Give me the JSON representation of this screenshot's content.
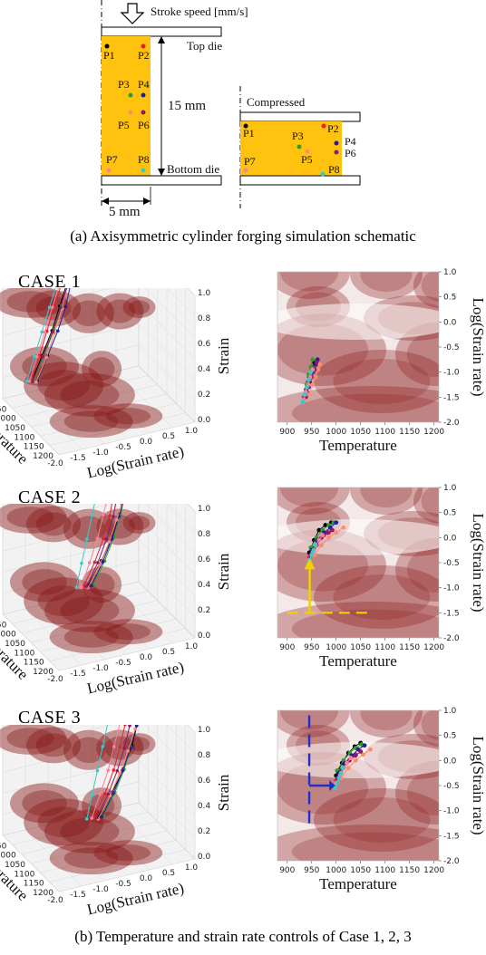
{
  "schematic": {
    "stroke_label": "Stroke speed [mm/s]",
    "top_die": "Top die",
    "bottom_die": "Bottom die",
    "height_label": "15 mm",
    "width_label": "5 mm",
    "compressed_label": "Compressed",
    "points": [
      "P1",
      "P2",
      "P3",
      "P4",
      "P5",
      "P6",
      "P7",
      "P8"
    ],
    "point_colors": [
      "#000000",
      "#e8202a",
      "#2ca02c",
      "#1f1f9f",
      "#ff8c69",
      "#8b1a6b",
      "#ff7f9a",
      "#3ec9c9"
    ],
    "workpiece_color": "#ffc20e"
  },
  "caption_a": "(a) Axisymmetric cylinder forging simulation schematic",
  "caption_b": "(b) Temperature and strain rate controls of Case 1, 2, 3",
  "cases": [
    {
      "title": "CASE 1"
    },
    {
      "title": "CASE 2"
    },
    {
      "title": "CASE 3"
    }
  ],
  "axes_3d": {
    "temperature_label": "Temperature",
    "strain_rate_label": "Log(Strain rate)",
    "strain_label": "Strain",
    "temperature_ticks": [
      "900",
      "950",
      "1000",
      "1050",
      "1100",
      "1150",
      "1200"
    ],
    "strain_rate_ticks": [
      "-2.0",
      "-1.5",
      "-1.0",
      "-0.5",
      "0.0",
      "0.5",
      "1.0"
    ],
    "strain_ticks": [
      "0.0",
      "0.2",
      "0.4",
      "0.6",
      "0.8",
      "1.0"
    ]
  },
  "axes_2d": {
    "xlabel": "Temperature",
    "ylabel": "Log(Strain rate)",
    "x_ticks": [
      "900",
      "950",
      "1000",
      "1050",
      "1100",
      "1150",
      "1200"
    ],
    "y_ticks": [
      "1.0",
      "0.5",
      "0.0",
      "-0.5",
      "-1.0",
      "-1.5",
      "-2.0"
    ]
  },
  "chart_data": [
    {
      "type": "scatter",
      "title": "CASE 1",
      "xlabel": "Temperature",
      "ylabel": "Log(Strain rate)",
      "xlim": [
        880,
        1210
      ],
      "ylim": [
        -2.0,
        1.0
      ],
      "series": [
        {
          "name": "P1",
          "color": "#000000",
          "x": [
            935,
            940,
            945,
            950,
            955
          ],
          "y": [
            -1.5,
            -1.3,
            -1.1,
            -0.95,
            -0.8
          ]
        },
        {
          "name": "P2",
          "color": "#e8202a",
          "x": [
            934,
            938,
            942,
            946,
            950
          ],
          "y": [
            -1.5,
            -1.35,
            -1.2,
            -1.05,
            -0.9
          ]
        },
        {
          "name": "P3",
          "color": "#2ca02c",
          "x": [
            936,
            940,
            944,
            948,
            952
          ],
          "y": [
            -1.45,
            -1.25,
            -1.05,
            -0.9,
            -0.75
          ]
        },
        {
          "name": "P4",
          "color": "#1f1f9f",
          "x": [
            940,
            946,
            952,
            958,
            962
          ],
          "y": [
            -1.4,
            -1.2,
            -1.0,
            -0.85,
            -0.75
          ]
        },
        {
          "name": "P5",
          "color": "#ff8c69",
          "x": [
            945,
            952,
            958,
            963,
            967
          ],
          "y": [
            -1.45,
            -1.25,
            -1.1,
            -0.95,
            -0.85
          ]
        },
        {
          "name": "P6",
          "color": "#8b1a6b",
          "x": [
            938,
            944,
            950,
            956,
            960
          ],
          "y": [
            -1.5,
            -1.3,
            -1.1,
            -0.95,
            -0.8
          ]
        },
        {
          "name": "P7",
          "color": "#ff7f9a",
          "x": [
            934,
            938,
            943,
            947,
            952
          ],
          "y": [
            -1.55,
            -1.4,
            -1.25,
            -1.1,
            -0.95
          ]
        },
        {
          "name": "P8",
          "color": "#3ec9c9",
          "x": [
            932,
            936,
            940,
            944,
            948
          ],
          "y": [
            -1.6,
            -1.45,
            -1.3,
            -1.15,
            -1.0
          ]
        }
      ]
    },
    {
      "type": "scatter",
      "title": "CASE 2",
      "xlabel": "Temperature",
      "ylabel": "Log(Strain rate)",
      "xlim": [
        880,
        1210
      ],
      "ylim": [
        -2.0,
        1.0
      ],
      "series": [
        {
          "name": "P1",
          "color": "#000000",
          "x": [
            945,
            955,
            965,
            978,
            990
          ],
          "y": [
            -0.3,
            -0.05,
            0.15,
            0.25,
            0.3
          ]
        },
        {
          "name": "P2",
          "color": "#e8202a",
          "x": [
            945,
            955,
            965,
            975,
            985
          ],
          "y": [
            -0.4,
            -0.2,
            -0.05,
            0.05,
            0.1
          ]
        },
        {
          "name": "P3",
          "color": "#2ca02c",
          "x": [
            948,
            960,
            972,
            985,
            995
          ],
          "y": [
            -0.2,
            0.0,
            0.15,
            0.25,
            0.3
          ]
        },
        {
          "name": "P4",
          "color": "#1f1f9f",
          "x": [
            950,
            962,
            975,
            988,
            1000
          ],
          "y": [
            -0.25,
            -0.05,
            0.1,
            0.2,
            0.3
          ]
        },
        {
          "name": "P5",
          "color": "#ff8c69",
          "x": [
            955,
            970,
            985,
            1000,
            1015
          ],
          "y": [
            -0.35,
            -0.15,
            0.0,
            0.1,
            0.2
          ]
        },
        {
          "name": "P6",
          "color": "#8b1a6b",
          "x": [
            948,
            960,
            970,
            982,
            992
          ],
          "y": [
            -0.35,
            -0.15,
            0.0,
            0.1,
            0.15
          ]
        },
        {
          "name": "P7",
          "color": "#ff7f9a",
          "x": [
            945,
            952,
            958,
            965,
            972
          ],
          "y": [
            -0.45,
            -0.3,
            -0.15,
            -0.05,
            0.05
          ]
        },
        {
          "name": "P8",
          "color": "#3ec9c9",
          "x": [
            942,
            946,
            950,
            954,
            958
          ],
          "y": [
            -0.55,
            -0.45,
            -0.35,
            -0.25,
            -0.15
          ]
        }
      ]
    },
    {
      "type": "scatter",
      "title": "CASE 3",
      "xlabel": "Temperature",
      "ylabel": "Log(Strain rate)",
      "xlim": [
        880,
        1210
      ],
      "ylim": [
        -2.0,
        1.0
      ],
      "series": [
        {
          "name": "P1",
          "color": "#000000",
          "x": [
            1000,
            1012,
            1025,
            1038,
            1050
          ],
          "y": [
            -0.3,
            -0.05,
            0.15,
            0.28,
            0.35
          ]
        },
        {
          "name": "P2",
          "color": "#e8202a",
          "x": [
            1000,
            1010,
            1020,
            1030,
            1040
          ],
          "y": [
            -0.4,
            -0.2,
            -0.05,
            0.05,
            0.12
          ]
        },
        {
          "name": "P3",
          "color": "#2ca02c",
          "x": [
            1002,
            1015,
            1028,
            1040,
            1052
          ],
          "y": [
            -0.2,
            0.0,
            0.15,
            0.25,
            0.32
          ]
        },
        {
          "name": "P4",
          "color": "#1f1f9f",
          "x": [
            1005,
            1018,
            1032,
            1045,
            1058
          ],
          "y": [
            -0.25,
            -0.05,
            0.1,
            0.22,
            0.3
          ]
        },
        {
          "name": "P5",
          "color": "#ff8c69",
          "x": [
            1010,
            1025,
            1040,
            1055,
            1070
          ],
          "y": [
            -0.35,
            -0.15,
            0.0,
            0.12,
            0.22
          ]
        },
        {
          "name": "P6",
          "color": "#8b1a6b",
          "x": [
            1003,
            1015,
            1027,
            1040,
            1050
          ],
          "y": [
            -0.35,
            -0.15,
            0.0,
            0.1,
            0.18
          ]
        },
        {
          "name": "P7",
          "color": "#ff7f9a",
          "x": [
            1000,
            1008,
            1015,
            1022,
            1030
          ],
          "y": [
            -0.45,
            -0.3,
            -0.15,
            -0.05,
            0.05
          ]
        },
        {
          "name": "P8",
          "color": "#3ec9c9",
          "x": [
            998,
            1002,
            1006,
            1010,
            1014
          ],
          "y": [
            -0.55,
            -0.45,
            -0.35,
            -0.25,
            -0.15
          ]
        }
      ]
    }
  ]
}
